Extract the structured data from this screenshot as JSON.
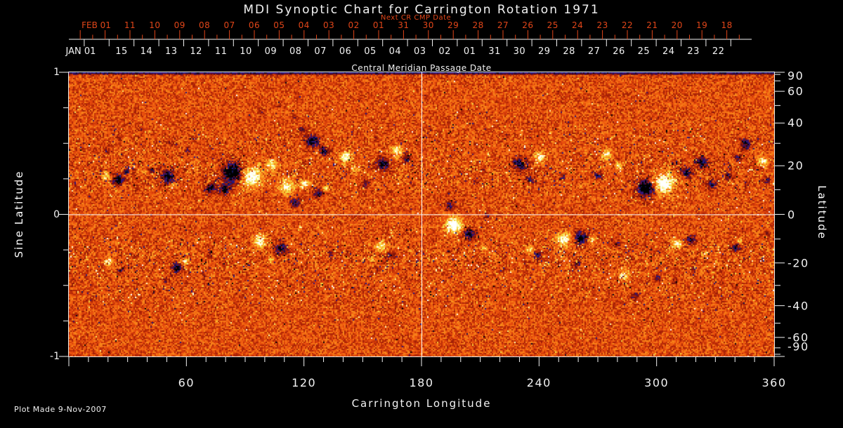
{
  "title": "MDI Synoptic Chart for Carrington Rotation 1971",
  "footer": "Plot Made  9-Nov-2007",
  "colors": {
    "background": "#000000",
    "foreground": "#f2f2f2",
    "date_axis_red": "#e24619",
    "crosshair": "#ffffff",
    "plot_border": "#e8e8e8"
  },
  "axes": {
    "next_cr": {
      "label": "Next CR CMP Date",
      "month_label": "FEB 01",
      "day_labels": [
        "11",
        "10",
        "09",
        "08",
        "07",
        "06",
        "05",
        "04",
        "03",
        "02",
        "01",
        "31",
        "30",
        "29",
        "28",
        "27",
        "26",
        "25",
        "24",
        "23",
        "22",
        "21",
        "20",
        "19",
        "18"
      ]
    },
    "cmp": {
      "label": "Central Meridian Passage Date",
      "month_label": "JAN 01",
      "day_labels": [
        "15",
        "14",
        "13",
        "12",
        "11",
        "10",
        "09",
        "08",
        "07",
        "06",
        "05",
        "04",
        "03",
        "02",
        "01",
        "31",
        "30",
        "29",
        "28",
        "27",
        "26",
        "25",
        "24",
        "23",
        "22"
      ]
    },
    "left": {
      "title": "Sine Latitude",
      "tick_labels": [
        "1",
        "0",
        "-1"
      ],
      "tick_values": [
        1,
        0,
        -1
      ],
      "minor_step": 0.25,
      "range": [
        -1,
        1
      ]
    },
    "right": {
      "title": "Latitude",
      "tick_labels": [
        "90",
        "60",
        "40",
        "20",
        "0",
        "-20",
        "-40",
        "-60",
        "-90"
      ],
      "tick_values": [
        90,
        60,
        40,
        20,
        0,
        -20,
        -40,
        -60,
        -90
      ],
      "minor_step_deg": 10
    },
    "bottom": {
      "title": "Carrington Longitude",
      "tick_labels": [
        "60",
        "120",
        "180",
        "240",
        "300",
        "360"
      ],
      "tick_values": [
        60,
        120,
        180,
        240,
        300,
        360
      ],
      "minor_step_deg": 10,
      "range": [
        0,
        360
      ]
    }
  },
  "chart_data": {
    "type": "heatmap",
    "subtype": "solar-synoptic-magnetogram",
    "title": "MDI Synoptic Chart for Carrington Rotation 1971",
    "xlabel": "Carrington Longitude",
    "ylabel_left": "Sine Latitude",
    "ylabel_right": "Latitude",
    "x_range_deg": [
      0,
      360
    ],
    "y_range_sine_latitude": [
      -1,
      1
    ],
    "crosshair": {
      "longitude_deg": 180,
      "sine_latitude": 0
    },
    "colormap_stops": [
      [
        -1.0,
        0,
        0,
        0
      ],
      [
        -0.9,
        8,
        8,
        30
      ],
      [
        -0.78,
        30,
        30,
        140
      ],
      [
        -0.65,
        60,
        18,
        110
      ],
      [
        -0.52,
        95,
        12,
        35
      ],
      [
        -0.4,
        125,
        18,
        8
      ],
      [
        -0.2,
        178,
        38,
        6
      ],
      [
        0.0,
        228,
        72,
        12
      ],
      [
        0.18,
        244,
        106,
        18
      ],
      [
        0.35,
        250,
        148,
        30
      ],
      [
        0.52,
        250,
        192,
        48
      ],
      [
        0.66,
        238,
        224,
        72
      ],
      [
        0.8,
        252,
        248,
        160
      ],
      [
        1.0,
        255,
        255,
        255
      ]
    ],
    "activity_band": {
      "center_abs_sine_lat": 0.3,
      "width": 0.17
    },
    "active_regions_lon_slat_radius_amp": [
      [
        19,
        0.27,
        1.8,
        0.9
      ],
      [
        25,
        0.25,
        2.5,
        -1.2
      ],
      [
        29,
        0.31,
        1.4,
        -0.8
      ],
      [
        50,
        0.27,
        3.2,
        -1.1
      ],
      [
        53,
        0.21,
        1.4,
        0.7
      ],
      [
        42,
        0.32,
        1.4,
        -0.7
      ],
      [
        72,
        0.2,
        2.9,
        -1.0
      ],
      [
        71,
        0.23,
        1.4,
        0.8
      ],
      [
        83,
        0.3,
        4.7,
        -1.5
      ],
      [
        79,
        0.18,
        2.5,
        -1.1
      ],
      [
        93,
        0.27,
        5.0,
        1.2
      ],
      [
        103,
        0.35,
        2.9,
        0.8
      ],
      [
        111,
        0.2,
        3.6,
        0.9
      ],
      [
        115,
        0.09,
        2.2,
        -0.9
      ],
      [
        120,
        0.22,
        2.2,
        0.8
      ],
      [
        124,
        0.52,
        3.2,
        -1.0
      ],
      [
        130,
        0.45,
        2.2,
        -0.9
      ],
      [
        119,
        0.6,
        1.8,
        -0.6
      ],
      [
        127,
        0.15,
        2.2,
        -0.9
      ],
      [
        131,
        0.19,
        1.4,
        0.7
      ],
      [
        141,
        0.41,
        2.9,
        1.0
      ],
      [
        146,
        0.32,
        1.8,
        0.7
      ],
      [
        151,
        0.22,
        1.8,
        -0.8
      ],
      [
        160,
        0.36,
        2.9,
        -1.0
      ],
      [
        167,
        0.46,
        2.5,
        0.9
      ],
      [
        172,
        0.4,
        1.8,
        -0.8
      ],
      [
        194,
        0.07,
        2.2,
        -0.7
      ],
      [
        230,
        0.36,
        3.2,
        -1.1
      ],
      [
        235,
        0.25,
        1.8,
        -0.8
      ],
      [
        240,
        0.41,
        2.5,
        0.9
      ],
      [
        252,
        0.27,
        1.4,
        -0.6
      ],
      [
        274,
        0.43,
        2.5,
        0.9
      ],
      [
        280,
        0.35,
        1.8,
        0.7
      ],
      [
        270,
        0.28,
        1.8,
        -0.8
      ],
      [
        294,
        0.19,
        3.9,
        -1.5
      ],
      [
        304,
        0.23,
        4.7,
        1.3
      ],
      [
        315,
        0.3,
        2.5,
        -1.0
      ],
      [
        323,
        0.37,
        2.9,
        -1.0
      ],
      [
        328,
        0.22,
        2.2,
        -0.9
      ],
      [
        336,
        0.27,
        1.8,
        -0.7
      ],
      [
        345,
        0.5,
        2.5,
        -0.9
      ],
      [
        341,
        0.4,
        1.8,
        -0.7
      ],
      [
        354,
        0.38,
        2.5,
        1.0
      ],
      [
        356,
        0.25,
        1.8,
        -0.7
      ],
      [
        26,
        0.55,
        1.4,
        -0.4
      ],
      [
        37,
        0.6,
        1.4,
        -0.4
      ],
      [
        51,
        0.52,
        1.4,
        -0.45
      ],
      [
        60,
        0.45,
        1.4,
        -0.45
      ],
      [
        19,
        0.45,
        1.4,
        -0.4
      ],
      [
        10,
        0.37,
        1.1,
        -0.4
      ],
      [
        98,
        0.72,
        1.4,
        -0.4
      ],
      [
        107,
        0.77,
        1.1,
        -0.35
      ],
      [
        115,
        0.69,
        1.4,
        -0.4
      ],
      [
        20,
        -0.33,
        2.2,
        0.9
      ],
      [
        26,
        -0.39,
        1.4,
        -0.7
      ],
      [
        55,
        -0.37,
        2.5,
        -1.0
      ],
      [
        59,
        -0.32,
        1.8,
        0.8
      ],
      [
        49,
        -0.46,
        1.4,
        -0.6
      ],
      [
        72,
        -0.27,
        1.4,
        -0.5
      ],
      [
        97,
        -0.18,
        3.2,
        1.0
      ],
      [
        108,
        -0.23,
        2.9,
        -1.0
      ],
      [
        103,
        -0.31,
        1.4,
        0.6
      ],
      [
        133,
        -0.27,
        1.4,
        -0.5
      ],
      [
        159,
        -0.22,
        2.5,
        0.9
      ],
      [
        164,
        -0.28,
        1.8,
        -0.7
      ],
      [
        154,
        -0.31,
        1.4,
        0.6
      ],
      [
        196,
        -0.07,
        3.9,
        1.3
      ],
      [
        204,
        -0.13,
        2.5,
        -1.2
      ],
      [
        212,
        -0.23,
        1.4,
        0.6
      ],
      [
        213,
        0.0,
        1.4,
        -0.6
      ],
      [
        235,
        -0.24,
        1.8,
        0.8
      ],
      [
        239,
        -0.28,
        1.8,
        -0.8
      ],
      [
        252,
        -0.17,
        3.2,
        1.1
      ],
      [
        261,
        -0.16,
        2.9,
        -1.2
      ],
      [
        267,
        -0.17,
        1.8,
        0.7
      ],
      [
        259,
        -0.34,
        1.8,
        -0.6
      ],
      [
        283,
        -0.42,
        2.5,
        0.9
      ],
      [
        289,
        -0.57,
        1.8,
        -0.7
      ],
      [
        279,
        -0.2,
        1.4,
        -0.5
      ],
      [
        300,
        -0.44,
        1.8,
        -0.6
      ],
      [
        309,
        -0.47,
        1.4,
        -0.55
      ],
      [
        318,
        -0.37,
        1.4,
        -0.5
      ],
      [
        310,
        -0.2,
        2.5,
        0.9
      ],
      [
        317,
        -0.17,
        2.2,
        -0.9
      ],
      [
        324,
        -0.27,
        1.4,
        0.5
      ],
      [
        340,
        -0.23,
        2.2,
        -0.8
      ],
      [
        342,
        -0.18,
        1.4,
        0.6
      ],
      [
        356,
        -0.12,
        1.4,
        -0.5
      ]
    ]
  }
}
